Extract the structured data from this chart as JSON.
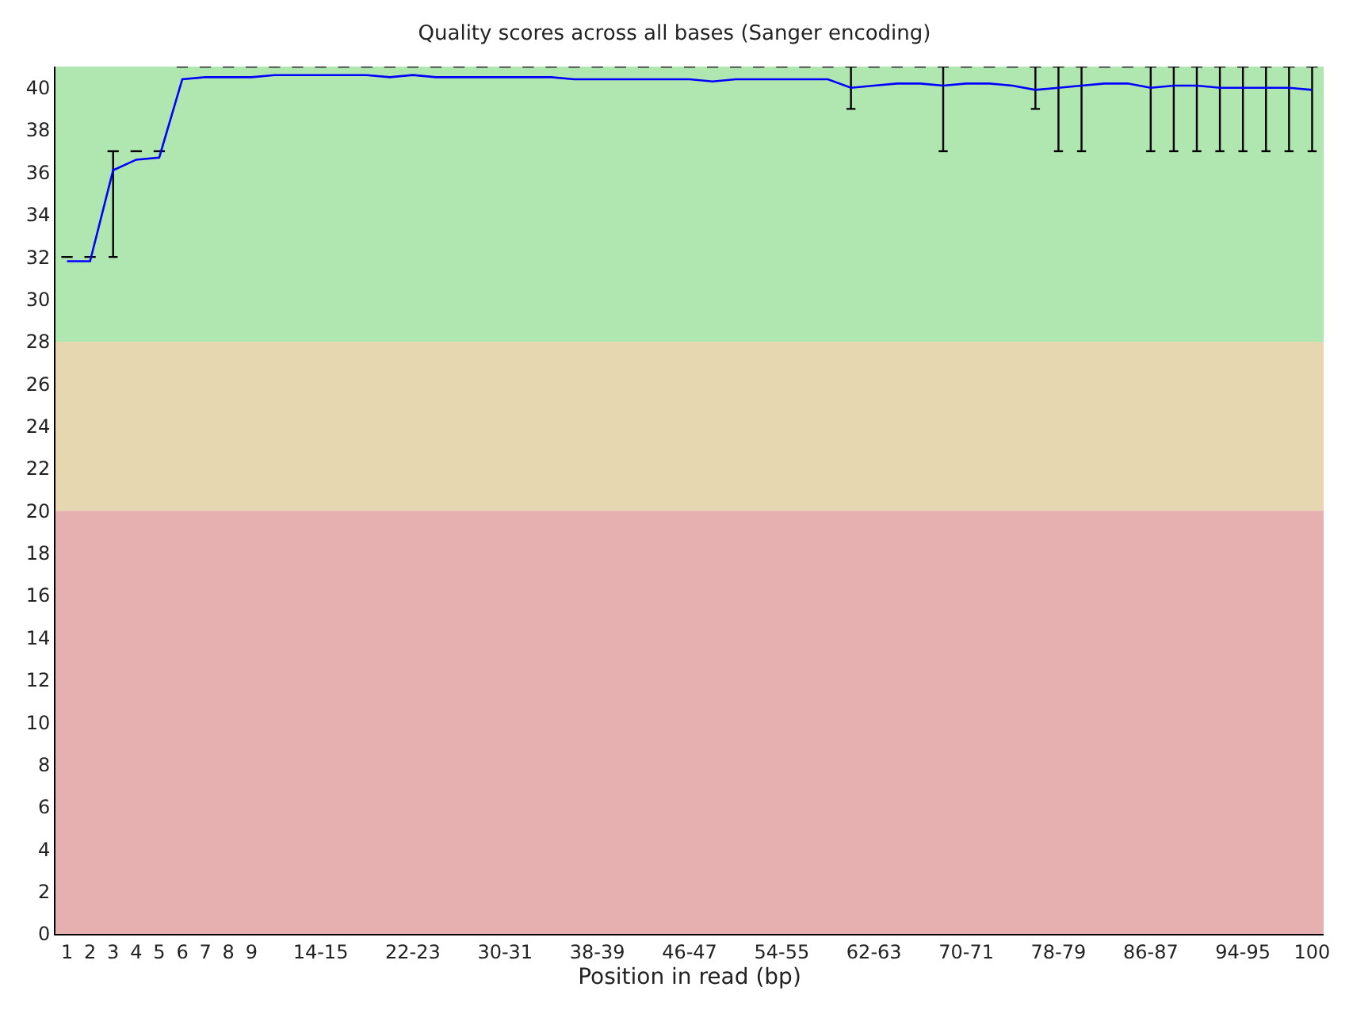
{
  "chart_data": {
    "type": "box",
    "title": "Quality scores across all bases (Sanger encoding)",
    "xlabel": "Position in read (bp)",
    "categories": [
      "1",
      "2",
      "3",
      "4",
      "5",
      "6",
      "7",
      "8",
      "9",
      null,
      null,
      "14-15",
      null,
      null,
      null,
      "22-23",
      null,
      null,
      null,
      "30-31",
      null,
      null,
      null,
      "38-39",
      null,
      null,
      null,
      "46-47",
      null,
      null,
      null,
      "54-55",
      null,
      null,
      null,
      "62-63",
      null,
      null,
      null,
      "70-71",
      null,
      null,
      null,
      "78-79",
      null,
      null,
      null,
      "86-87",
      null,
      null,
      null,
      "94-95",
      null,
      null,
      "100"
    ],
    "ylim": [
      0,
      41
    ],
    "yticks": [
      0,
      2,
      4,
      6,
      8,
      10,
      12,
      14,
      16,
      18,
      20,
      22,
      24,
      26,
      28,
      30,
      32,
      34,
      36,
      38,
      40
    ],
    "bands": [
      {
        "axis": "y",
        "from": 28,
        "to": 41,
        "color": "#b0e6b0"
      },
      {
        "axis": "y",
        "from": 20,
        "to": 28,
        "color": "#e6d7b0"
      },
      {
        "axis": "y",
        "from": 0,
        "to": 20,
        "color": "#e6b0b0"
      }
    ],
    "series": [
      {
        "color": "#000000",
        "boxes": [
          {
            "low": 32,
            "q1": 32,
            "median": 32,
            "q3": 32,
            "high": 32
          },
          {
            "low": 32,
            "q1": 32,
            "median": 32,
            "q3": 32,
            "high": 32
          },
          {
            "low": 32,
            "q1": 37,
            "median": 37,
            "q3": 37,
            "high": 37
          },
          {
            "low": 37,
            "q1": 37,
            "median": 37,
            "q3": 37,
            "high": 37
          },
          {
            "low": 37,
            "q1": 37,
            "median": 37,
            "q3": 37,
            "high": 37
          },
          {
            "low": 41,
            "q1": 41,
            "median": 41,
            "q3": 41,
            "high": 41
          },
          {
            "low": 41,
            "q1": 41,
            "median": 41,
            "q3": 41,
            "high": 41
          },
          {
            "low": 41,
            "q1": 41,
            "median": 41,
            "q3": 41,
            "high": 41
          },
          {
            "low": 41,
            "q1": 41,
            "median": 41,
            "q3": 41,
            "high": 41
          },
          {
            "low": 41,
            "q1": 41,
            "median": 41,
            "q3": 41,
            "high": 41
          },
          {
            "low": 41,
            "q1": 41,
            "median": 41,
            "q3": 41,
            "high": 41
          },
          {
            "low": 41,
            "q1": 41,
            "median": 41,
            "q3": 41,
            "high": 41
          },
          {
            "low": 41,
            "q1": 41,
            "median": 41,
            "q3": 41,
            "high": 41
          },
          {
            "low": 41,
            "q1": 41,
            "median": 41,
            "q3": 41,
            "high": 41
          },
          {
            "low": 41,
            "q1": 41,
            "median": 41,
            "q3": 41,
            "high": 41
          },
          {
            "low": 41,
            "q1": 41,
            "median": 41,
            "q3": 41,
            "high": 41
          },
          {
            "low": 41,
            "q1": 41,
            "median": 41,
            "q3": 41,
            "high": 41
          },
          {
            "low": 41,
            "q1": 41,
            "median": 41,
            "q3": 41,
            "high": 41
          },
          {
            "low": 41,
            "q1": 41,
            "median": 41,
            "q3": 41,
            "high": 41
          },
          {
            "low": 41,
            "q1": 41,
            "median": 41,
            "q3": 41,
            "high": 41
          },
          {
            "low": 41,
            "q1": 41,
            "median": 41,
            "q3": 41,
            "high": 41
          },
          {
            "low": 41,
            "q1": 41,
            "median": 41,
            "q3": 41,
            "high": 41
          },
          {
            "low": 41,
            "q1": 41,
            "median": 41,
            "q3": 41,
            "high": 41
          },
          {
            "low": 41,
            "q1": 41,
            "median": 41,
            "q3": 41,
            "high": 41
          },
          {
            "low": 41,
            "q1": 41,
            "median": 41,
            "q3": 41,
            "high": 41
          },
          {
            "low": 41,
            "q1": 41,
            "median": 41,
            "q3": 41,
            "high": 41
          },
          {
            "low": 41,
            "q1": 41,
            "median": 41,
            "q3": 41,
            "high": 41
          },
          {
            "low": 41,
            "q1": 41,
            "median": 41,
            "q3": 41,
            "high": 41
          },
          {
            "low": 41,
            "q1": 41,
            "median": 41,
            "q3": 41,
            "high": 41
          },
          {
            "low": 41,
            "q1": 41,
            "median": 41,
            "q3": 41,
            "high": 41
          },
          {
            "low": 41,
            "q1": 41,
            "median": 41,
            "q3": 41,
            "high": 41
          },
          {
            "low": 41,
            "q1": 41,
            "median": 41,
            "q3": 41,
            "high": 41
          },
          {
            "low": 41,
            "q1": 41,
            "median": 41,
            "q3": 41,
            "high": 41
          },
          {
            "low": 41,
            "q1": 41,
            "median": 41,
            "q3": 41,
            "high": 41
          },
          {
            "low": 39,
            "q1": 41,
            "median": 41,
            "q3": 41,
            "high": 41
          },
          {
            "low": 41,
            "q1": 41,
            "median": 41,
            "q3": 41,
            "high": 41
          },
          {
            "low": 41,
            "q1": 41,
            "median": 41,
            "q3": 41,
            "high": 41
          },
          {
            "low": 41,
            "q1": 41,
            "median": 41,
            "q3": 41,
            "high": 41
          },
          {
            "low": 37,
            "q1": 41,
            "median": 41,
            "q3": 41,
            "high": 41
          },
          {
            "low": 41,
            "q1": 41,
            "median": 41,
            "q3": 41,
            "high": 41
          },
          {
            "low": 41,
            "q1": 41,
            "median": 41,
            "q3": 41,
            "high": 41
          },
          {
            "low": 41,
            "q1": 41,
            "median": 41,
            "q3": 41,
            "high": 41
          },
          {
            "low": 39,
            "q1": 41,
            "median": 41,
            "q3": 41,
            "high": 41
          },
          {
            "low": 37,
            "q1": 41,
            "median": 41,
            "q3": 41,
            "high": 41
          },
          {
            "low": 37,
            "q1": 41,
            "median": 41,
            "q3": 41,
            "high": 41
          },
          {
            "low": 41,
            "q1": 41,
            "median": 41,
            "q3": 41,
            "high": 41
          },
          {
            "low": 41,
            "q1": 41,
            "median": 41,
            "q3": 41,
            "high": 41
          },
          {
            "low": 37,
            "q1": 41,
            "median": 41,
            "q3": 41,
            "high": 41
          },
          {
            "low": 37,
            "q1": 41,
            "median": 41,
            "q3": 41,
            "high": 41
          },
          {
            "low": 37,
            "q1": 41,
            "median": 41,
            "q3": 41,
            "high": 41
          },
          {
            "low": 37,
            "q1": 41,
            "median": 41,
            "q3": 41,
            "high": 41
          },
          {
            "low": 37,
            "q1": 41,
            "median": 41,
            "q3": 41,
            "high": 41
          },
          {
            "low": 37,
            "q1": 41,
            "median": 41,
            "q3": 41,
            "high": 41
          },
          {
            "low": 37,
            "q1": 41,
            "median": 41,
            "q3": 41,
            "high": 41
          },
          {
            "low": 37,
            "q1": 41,
            "median": 41,
            "q3": 41,
            "high": 41
          }
        ]
      },
      {
        "type": "line",
        "color": "#0000ff",
        "values": [
          31.8,
          31.8,
          36.1,
          36.6,
          36.7,
          40.4,
          40.5,
          40.5,
          40.5,
          40.6,
          40.6,
          40.6,
          40.6,
          40.6,
          40.5,
          40.6,
          40.5,
          40.5,
          40.5,
          40.5,
          40.5,
          40.5,
          40.4,
          40.4,
          40.4,
          40.4,
          40.4,
          40.4,
          40.3,
          40.4,
          40.4,
          40.4,
          40.4,
          40.4,
          40.0,
          40.1,
          40.2,
          40.2,
          40.1,
          40.2,
          40.2,
          40.1,
          39.9,
          40.0,
          40.1,
          40.2,
          40.2,
          40.0,
          40.1,
          40.1,
          40.0,
          40.0,
          40.0,
          40.0,
          39.9
        ]
      }
    ]
  }
}
